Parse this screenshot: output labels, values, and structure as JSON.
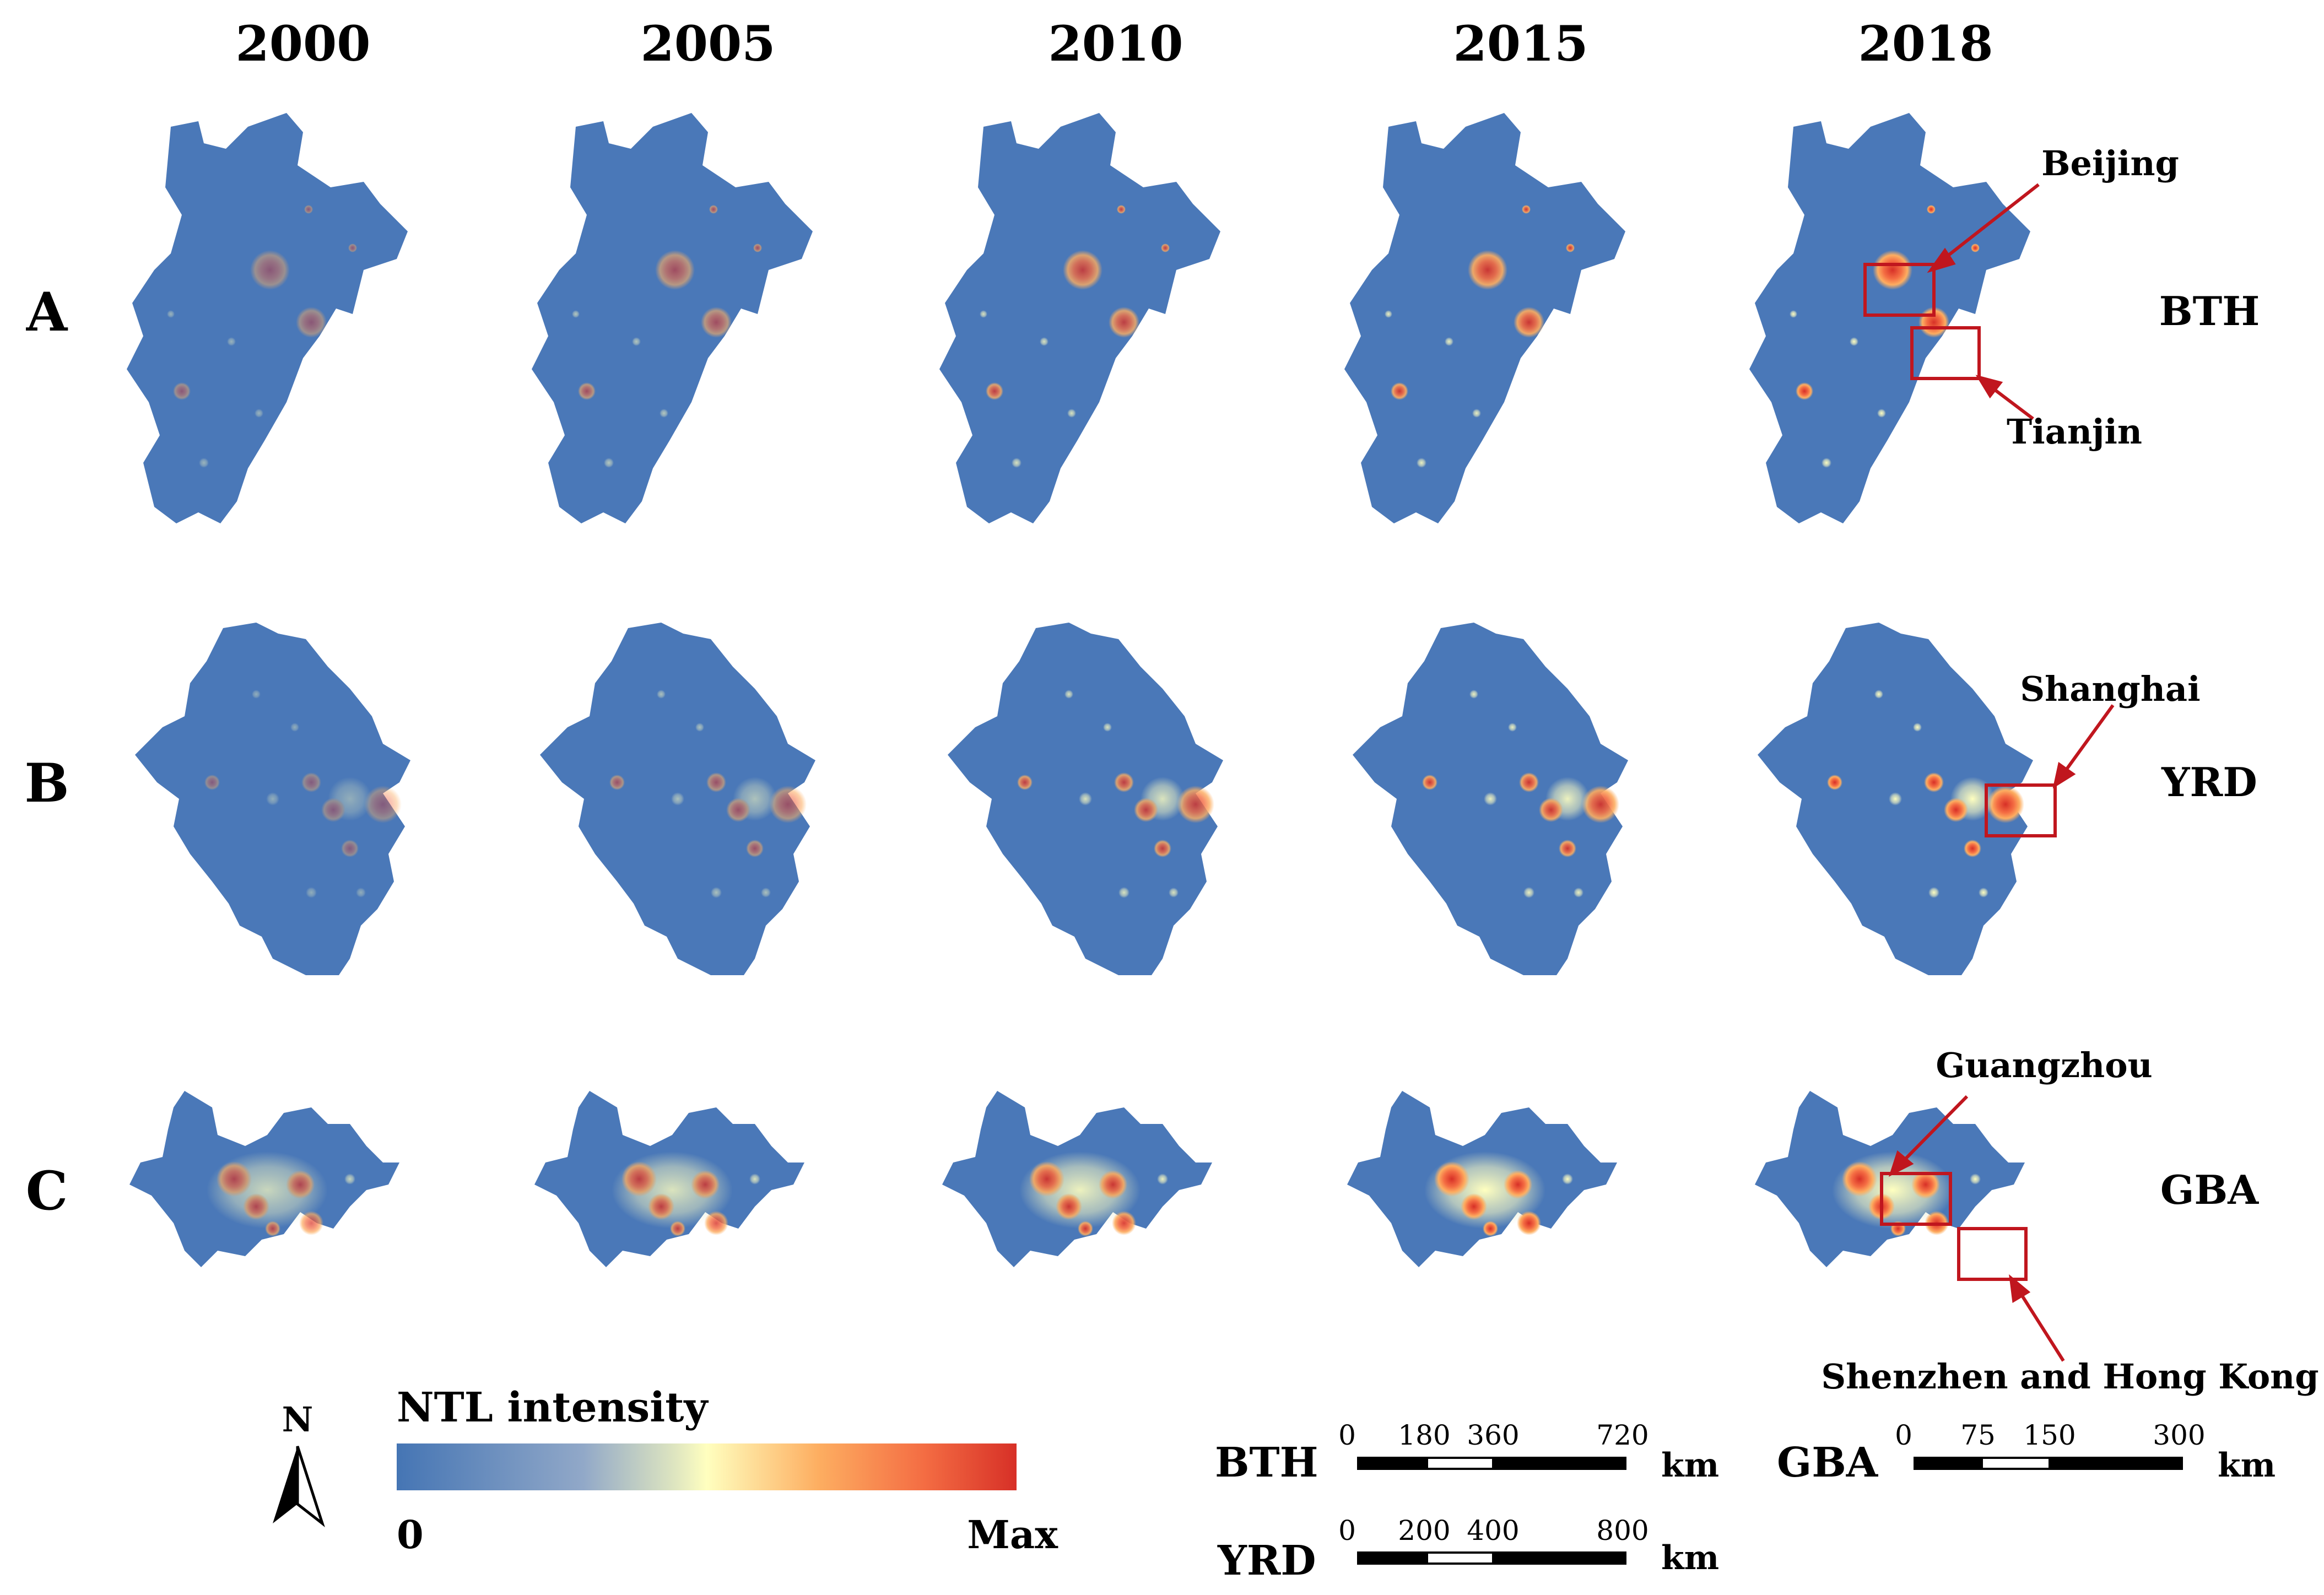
{
  "years": [
    "2000",
    "2005",
    "2010",
    "2015",
    "2018"
  ],
  "rows": [
    {
      "letter": "A",
      "region": "BTH"
    },
    {
      "letter": "B",
      "region": "YRD"
    },
    {
      "letter": "C",
      "region": "GBA"
    }
  ],
  "annotations": {
    "beijing": "Beijing",
    "tianjin": "Tianjin",
    "shanghai": "Shanghai",
    "guangzhou": "Guangzhou",
    "shenzhen_hk": "Shenzhen and Hong Kong"
  },
  "legend": {
    "title": "NTL intensity",
    "min": "0",
    "max": "Max",
    "colors": [
      "#4575b4",
      "#91a8c8",
      "#dfe6c0",
      "#ffffbf",
      "#fdae61",
      "#f46d43",
      "#d73027"
    ]
  },
  "north": "N",
  "scalebars": {
    "bth": {
      "label": "BTH",
      "ticks": [
        "0",
        "180",
        "360",
        "720"
      ],
      "unit": "km"
    },
    "yrd": {
      "label": "YRD",
      "ticks": [
        "0",
        "200",
        "400",
        "800"
      ],
      "unit": "km"
    },
    "gba": {
      "label": "GBA",
      "ticks": [
        "0",
        "75",
        "150",
        "300"
      ],
      "unit": "km"
    }
  },
  "colors": {
    "region_fill": "#4a78b8",
    "box": "#c0161e",
    "arrow": "#c0161e"
  }
}
